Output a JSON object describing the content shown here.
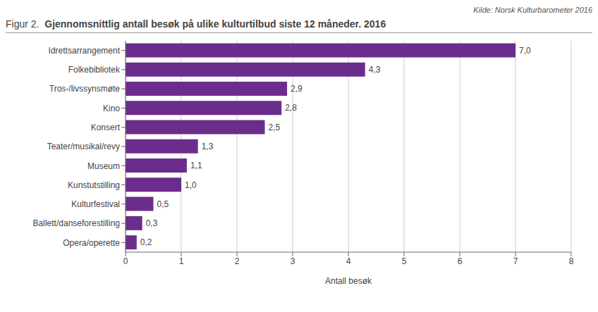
{
  "chart_data": {
    "type": "bar",
    "orientation": "horizontal",
    "title": "Gjennomsnittlig antall besøk på ulike kulturtilbud siste 12 måneder. 2016",
    "annotations": [
      "Figur 2.",
      "Kilde: Norsk Kulturbarometer 2016"
    ],
    "xlabel": "Antall besøk",
    "categories": [
      "Opera/operette",
      "Ballett/danseforestilling",
      "Kulturfestival",
      "Kunstutstilling",
      "Museum",
      "Teater/musikal/revy",
      "Konsert",
      "Kino",
      "Tros-/livssynsmøte",
      "Folkebibliotek",
      "Idrettsarrangement"
    ],
    "values": [
      0.2,
      0.3,
      0.5,
      1.0,
      1.1,
      1.3,
      2.5,
      2.8,
      2.9,
      4.3,
      7.0
    ],
    "value_labels": [
      "0,2",
      "0,3",
      "0,5",
      "1,0",
      "1,1",
      "1,3",
      "2,5",
      "2,8",
      "2,9",
      "4,3",
      "7,0"
    ],
    "data_labels": true,
    "color": "#6B2D8B",
    "xlim": [
      0,
      8
    ],
    "xticks": [
      0,
      1,
      2,
      3,
      4,
      5,
      6,
      7,
      8
    ],
    "grid": true
  }
}
